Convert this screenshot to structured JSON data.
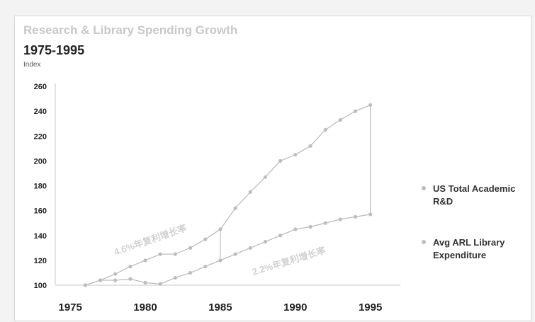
{
  "chart_data": {
    "type": "line",
    "title": "Research & Library Spending Growth",
    "subtitle": "1975-1995",
    "ylabel": "Index",
    "ylim": [
      100,
      260
    ],
    "yticks": [
      100,
      120,
      140,
      160,
      180,
      200,
      220,
      240,
      260
    ],
    "xlim": [
      1974,
      1997
    ],
    "xticks": [
      1975,
      1980,
      1985,
      1990,
      1995
    ],
    "grid": false,
    "legend_position": "right",
    "series": [
      {
        "name": "US Total Academic R&D",
        "color": "#bdbdbd",
        "x": [
          1976,
          1977,
          1978,
          1979,
          1980,
          1981,
          1982,
          1983,
          1984,
          1985,
          1986,
          1987,
          1988,
          1989,
          1990,
          1991,
          1992,
          1993,
          1994,
          1995
        ],
        "values": [
          100,
          104,
          109,
          115,
          120,
          125,
          125,
          130,
          137,
          145,
          162,
          175,
          187,
          200,
          205,
          212,
          225,
          233,
          240,
          245
        ]
      },
      {
        "name": "Avg ARL Library Expenditure",
        "color": "#bdbdbd",
        "x": [
          1976,
          1977,
          1978,
          1979,
          1980,
          1981,
          1982,
          1983,
          1984,
          1985,
          1986,
          1987,
          1988,
          1989,
          1990,
          1991,
          1992,
          1993,
          1994,
          1995
        ],
        "values": [
          100,
          104,
          104,
          105,
          102,
          101,
          106,
          110,
          115,
          120,
          125,
          130,
          135,
          140,
          145,
          147,
          150,
          153,
          155,
          157
        ]
      }
    ],
    "annotations": [
      {
        "text": "4.6%年复利增长率",
        "x": 1978,
        "y": 124,
        "angle": -19
      },
      {
        "text": "2.2%年复利增长率",
        "x": 1987.2,
        "y": 108,
        "angle": -17
      }
    ],
    "gap_markers": [
      {
        "x": 1985,
        "from": 120,
        "to": 145
      },
      {
        "x": 1995,
        "from": 157,
        "to": 245
      }
    ]
  }
}
